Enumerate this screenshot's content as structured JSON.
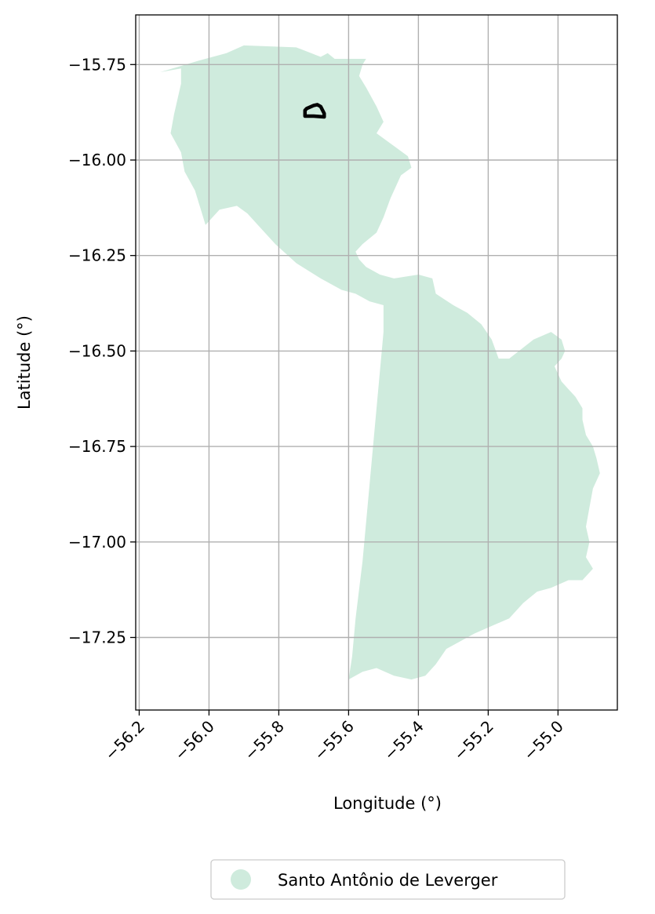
{
  "chart_data": {
    "type": "map",
    "xlabel": "Longitude (°)",
    "ylabel": "Latitude (°)",
    "xlim": [
      -56.21,
      -54.83
    ],
    "ylim": [
      -17.44,
      -15.62
    ],
    "x_ticks": [
      -56.2,
      -56.0,
      -55.8,
      -55.6,
      -55.4,
      -55.2,
      -55.0
    ],
    "x_tick_labels": [
      "−56.2",
      "−56.0",
      "−55.8",
      "−55.6",
      "−55.4",
      "−55.2",
      "−55.0"
    ],
    "y_ticks": [
      -15.75,
      -16.0,
      -16.25,
      -16.5,
      -16.75,
      -17.0,
      -17.25
    ],
    "y_tick_labels": [
      "−15.75",
      "−16.00",
      "−16.25",
      "−16.50",
      "−16.75",
      "−17.00",
      "−17.25"
    ],
    "grid": true,
    "legend": {
      "placement": "bottom-center",
      "entries": [
        {
          "label": "Santo Antônio de Leverger",
          "color": "#cfebdd"
        }
      ]
    },
    "region": {
      "name": "Santo Antônio de Leverger",
      "fill": "#cfebdd",
      "boundary": [
        [
          -55.9,
          -15.7
        ],
        [
          -55.75,
          -15.705
        ],
        [
          -55.68,
          -15.73
        ],
        [
          -55.66,
          -15.72
        ],
        [
          -55.64,
          -15.735
        ],
        [
          -55.55,
          -15.735
        ],
        [
          -55.56,
          -15.75
        ],
        [
          -55.57,
          -15.78
        ],
        [
          -55.55,
          -15.81
        ],
        [
          -55.52,
          -15.86
        ],
        [
          -55.5,
          -15.9
        ],
        [
          -55.52,
          -15.93
        ],
        [
          -55.49,
          -15.95
        ],
        [
          -55.46,
          -15.97
        ],
        [
          -55.43,
          -15.99
        ],
        [
          -55.42,
          -16.02
        ],
        [
          -55.45,
          -16.04
        ],
        [
          -55.48,
          -16.1
        ],
        [
          -55.5,
          -16.15
        ],
        [
          -55.52,
          -16.19
        ],
        [
          -55.56,
          -16.22
        ],
        [
          -55.58,
          -16.24
        ],
        [
          -55.57,
          -16.26
        ],
        [
          -55.55,
          -16.28
        ],
        [
          -55.51,
          -16.3
        ],
        [
          -55.47,
          -16.31
        ],
        [
          -55.4,
          -16.3
        ],
        [
          -55.36,
          -16.31
        ],
        [
          -55.35,
          -16.35
        ],
        [
          -55.3,
          -16.38
        ],
        [
          -55.26,
          -16.4
        ],
        [
          -55.22,
          -16.43
        ],
        [
          -55.19,
          -16.47
        ],
        [
          -55.17,
          -16.52
        ],
        [
          -55.14,
          -16.52
        ],
        [
          -55.07,
          -16.47
        ],
        [
          -55.02,
          -16.45
        ],
        [
          -54.99,
          -16.47
        ],
        [
          -54.98,
          -16.5
        ],
        [
          -54.99,
          -16.52
        ],
        [
          -55.01,
          -16.54
        ],
        [
          -54.99,
          -16.58
        ],
        [
          -54.97,
          -16.6
        ],
        [
          -54.95,
          -16.62
        ],
        [
          -54.93,
          -16.65
        ],
        [
          -54.93,
          -16.68
        ],
        [
          -54.92,
          -16.72
        ],
        [
          -54.9,
          -16.75
        ],
        [
          -54.89,
          -16.78
        ],
        [
          -54.88,
          -16.82
        ],
        [
          -54.9,
          -16.86
        ],
        [
          -54.91,
          -16.91
        ],
        [
          -54.92,
          -16.96
        ],
        [
          -54.91,
          -17.0
        ],
        [
          -54.92,
          -17.04
        ],
        [
          -54.9,
          -17.07
        ],
        [
          -54.93,
          -17.1
        ],
        [
          -54.97,
          -17.1
        ],
        [
          -55.02,
          -17.12
        ],
        [
          -55.06,
          -17.13
        ],
        [
          -55.1,
          -17.16
        ],
        [
          -55.14,
          -17.2
        ],
        [
          -55.19,
          -17.22
        ],
        [
          -55.24,
          -17.24
        ],
        [
          -55.28,
          -17.26
        ],
        [
          -55.32,
          -17.28
        ],
        [
          -55.35,
          -17.32
        ],
        [
          -55.38,
          -17.35
        ],
        [
          -55.42,
          -17.36
        ],
        [
          -55.47,
          -17.35
        ],
        [
          -55.52,
          -17.33
        ],
        [
          -55.56,
          -17.34
        ],
        [
          -55.6,
          -17.36
        ],
        [
          -55.59,
          -17.3
        ],
        [
          -55.58,
          -17.2
        ],
        [
          -55.56,
          -17.05
        ],
        [
          -55.54,
          -16.85
        ],
        [
          -55.52,
          -16.65
        ],
        [
          -55.5,
          -16.45
        ],
        [
          -55.5,
          -16.38
        ],
        [
          -55.54,
          -16.37
        ],
        [
          -55.58,
          -16.35
        ],
        [
          -55.62,
          -16.34
        ],
        [
          -55.68,
          -16.31
        ],
        [
          -55.75,
          -16.27
        ],
        [
          -55.81,
          -16.22
        ],
        [
          -55.86,
          -16.17
        ],
        [
          -55.89,
          -16.14
        ],
        [
          -55.92,
          -16.12
        ],
        [
          -55.97,
          -16.13
        ],
        [
          -56.01,
          -16.17
        ],
        [
          -56.04,
          -16.08
        ],
        [
          -56.07,
          -16.03
        ],
        [
          -56.08,
          -15.98
        ],
        [
          -56.11,
          -15.93
        ],
        [
          -56.1,
          -15.88
        ],
        [
          -56.08,
          -15.8
        ],
        [
          -56.08,
          -15.76
        ],
        [
          -56.14,
          -15.77
        ],
        [
          -56.03,
          -15.74
        ],
        [
          -55.95,
          -15.72
        ]
      ]
    },
    "marker_outline": {
      "color": "#000000",
      "boundary": [
        [
          -55.72,
          -15.865
        ],
        [
          -55.7,
          -15.857
        ],
        [
          -55.69,
          -15.855
        ],
        [
          -55.68,
          -15.86
        ],
        [
          -55.67,
          -15.878
        ],
        [
          -55.67,
          -15.887
        ],
        [
          -55.7,
          -15.885
        ],
        [
          -55.725,
          -15.885
        ],
        [
          -55.725,
          -15.87
        ]
      ]
    }
  }
}
